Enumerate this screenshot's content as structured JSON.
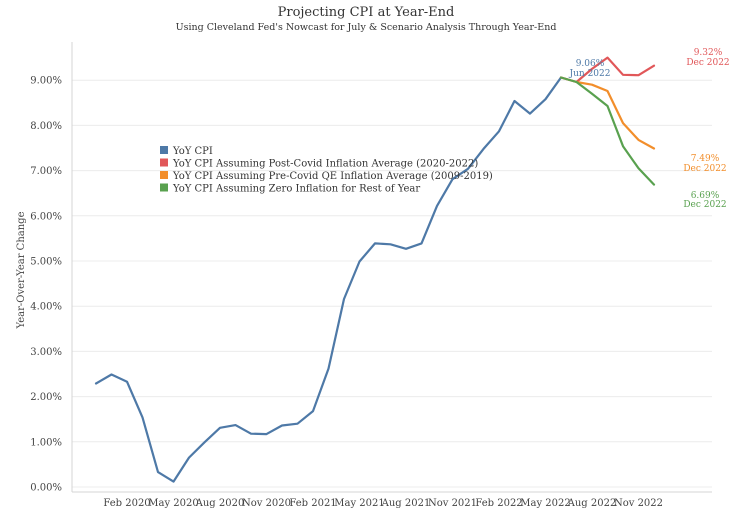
{
  "chart_data": {
    "type": "line",
    "title": "Projecting CPI at Year-End",
    "subtitle": "Using Cleveland Fed's Nowcast for July & Scenario Analysis Through Year-End",
    "ylabel": "Year-Over-Year Change",
    "xlabel": "",
    "ylim": [
      0,
      0.1
    ],
    "grid": "horizontal",
    "legend": "upper-left",
    "x_tick_labels": [
      "Feb 2020",
      "May 2020",
      "Aug 2020",
      "Nov 2020",
      "Feb 2021",
      "May 2021",
      "Aug 2021",
      "Nov 2021",
      "Feb 2022",
      "May 2022",
      "Aug 2022",
      "Nov 2022"
    ],
    "y_ticks": [
      0,
      0.01,
      0.02,
      0.03,
      0.04,
      0.05,
      0.06,
      0.07,
      0.08,
      0.09
    ],
    "y_tick_labels": [
      "0.00%",
      "1.00%",
      "2.00%",
      "3.00%",
      "4.00%",
      "5.00%",
      "6.00%",
      "7.00%",
      "8.00%",
      "9.00%"
    ],
    "series": [
      {
        "name": "YoY CPI",
        "color": "#4e79a7",
        "x": [
          "2019-12",
          "2020-01",
          "2020-02",
          "2020-03",
          "2020-04",
          "2020-05",
          "2020-06",
          "2020-07",
          "2020-08",
          "2020-09",
          "2020-10",
          "2020-11",
          "2020-12",
          "2021-01",
          "2021-02",
          "2021-03",
          "2021-04",
          "2021-05",
          "2021-06",
          "2021-07",
          "2021-08",
          "2021-09",
          "2021-10",
          "2021-11",
          "2021-12",
          "2022-01",
          "2022-02",
          "2022-03",
          "2022-04",
          "2022-05",
          "2022-06"
        ],
        "values": [
          0.0229,
          0.0249,
          0.0233,
          0.0154,
          0.0033,
          0.0012,
          0.0065,
          0.0099,
          0.0131,
          0.0137,
          0.0118,
          0.0117,
          0.0136,
          0.014,
          0.0168,
          0.0262,
          0.0416,
          0.0499,
          0.0539,
          0.0537,
          0.0527,
          0.0539,
          0.0622,
          0.0681,
          0.0704,
          0.0748,
          0.0787,
          0.0854,
          0.0826,
          0.0858,
          0.0906
        ]
      },
      {
        "name": "YoY CPI Assuming Post-Covid Inflation Average (2020-2022)",
        "color": "#e15759",
        "x": [
          "2022-06",
          "2022-07",
          "2022-08",
          "2022-09",
          "2022-10",
          "2022-11",
          "2022-12"
        ],
        "values": [
          0.0906,
          0.0896,
          0.0925,
          0.095,
          0.0912,
          0.0911,
          0.0932
        ]
      },
      {
        "name": "YoY CPI Assuming Pre-Covid QE Inflation Average (2009-2019)",
        "color": "#f28e2b",
        "x": [
          "2022-06",
          "2022-07",
          "2022-08",
          "2022-09",
          "2022-10",
          "2022-11",
          "2022-12"
        ],
        "values": [
          0.0906,
          0.0896,
          0.089,
          0.0876,
          0.0805,
          0.0768,
          0.0749
        ]
      },
      {
        "name": "YoY CPI Assuming Zero Inflation for Rest of Year",
        "color": "#59a14f",
        "x": [
          "2022-06",
          "2022-07",
          "2022-08",
          "2022-09",
          "2022-10",
          "2022-11",
          "2022-12"
        ],
        "values": [
          0.0906,
          0.0896,
          0.087,
          0.0843,
          0.0754,
          0.0705,
          0.0669
        ]
      }
    ],
    "annotations": [
      {
        "value": "9.06%",
        "date": "Jun 2022",
        "color": "#4e79a7"
      },
      {
        "value": "9.32%",
        "date": "Dec 2022",
        "color": "#e15759"
      },
      {
        "value": "7.49%",
        "date": "Dec 2022",
        "color": "#f28e2b"
      },
      {
        "value": "6.69%",
        "date": "Dec 2022",
        "color": "#59a14f"
      }
    ]
  }
}
